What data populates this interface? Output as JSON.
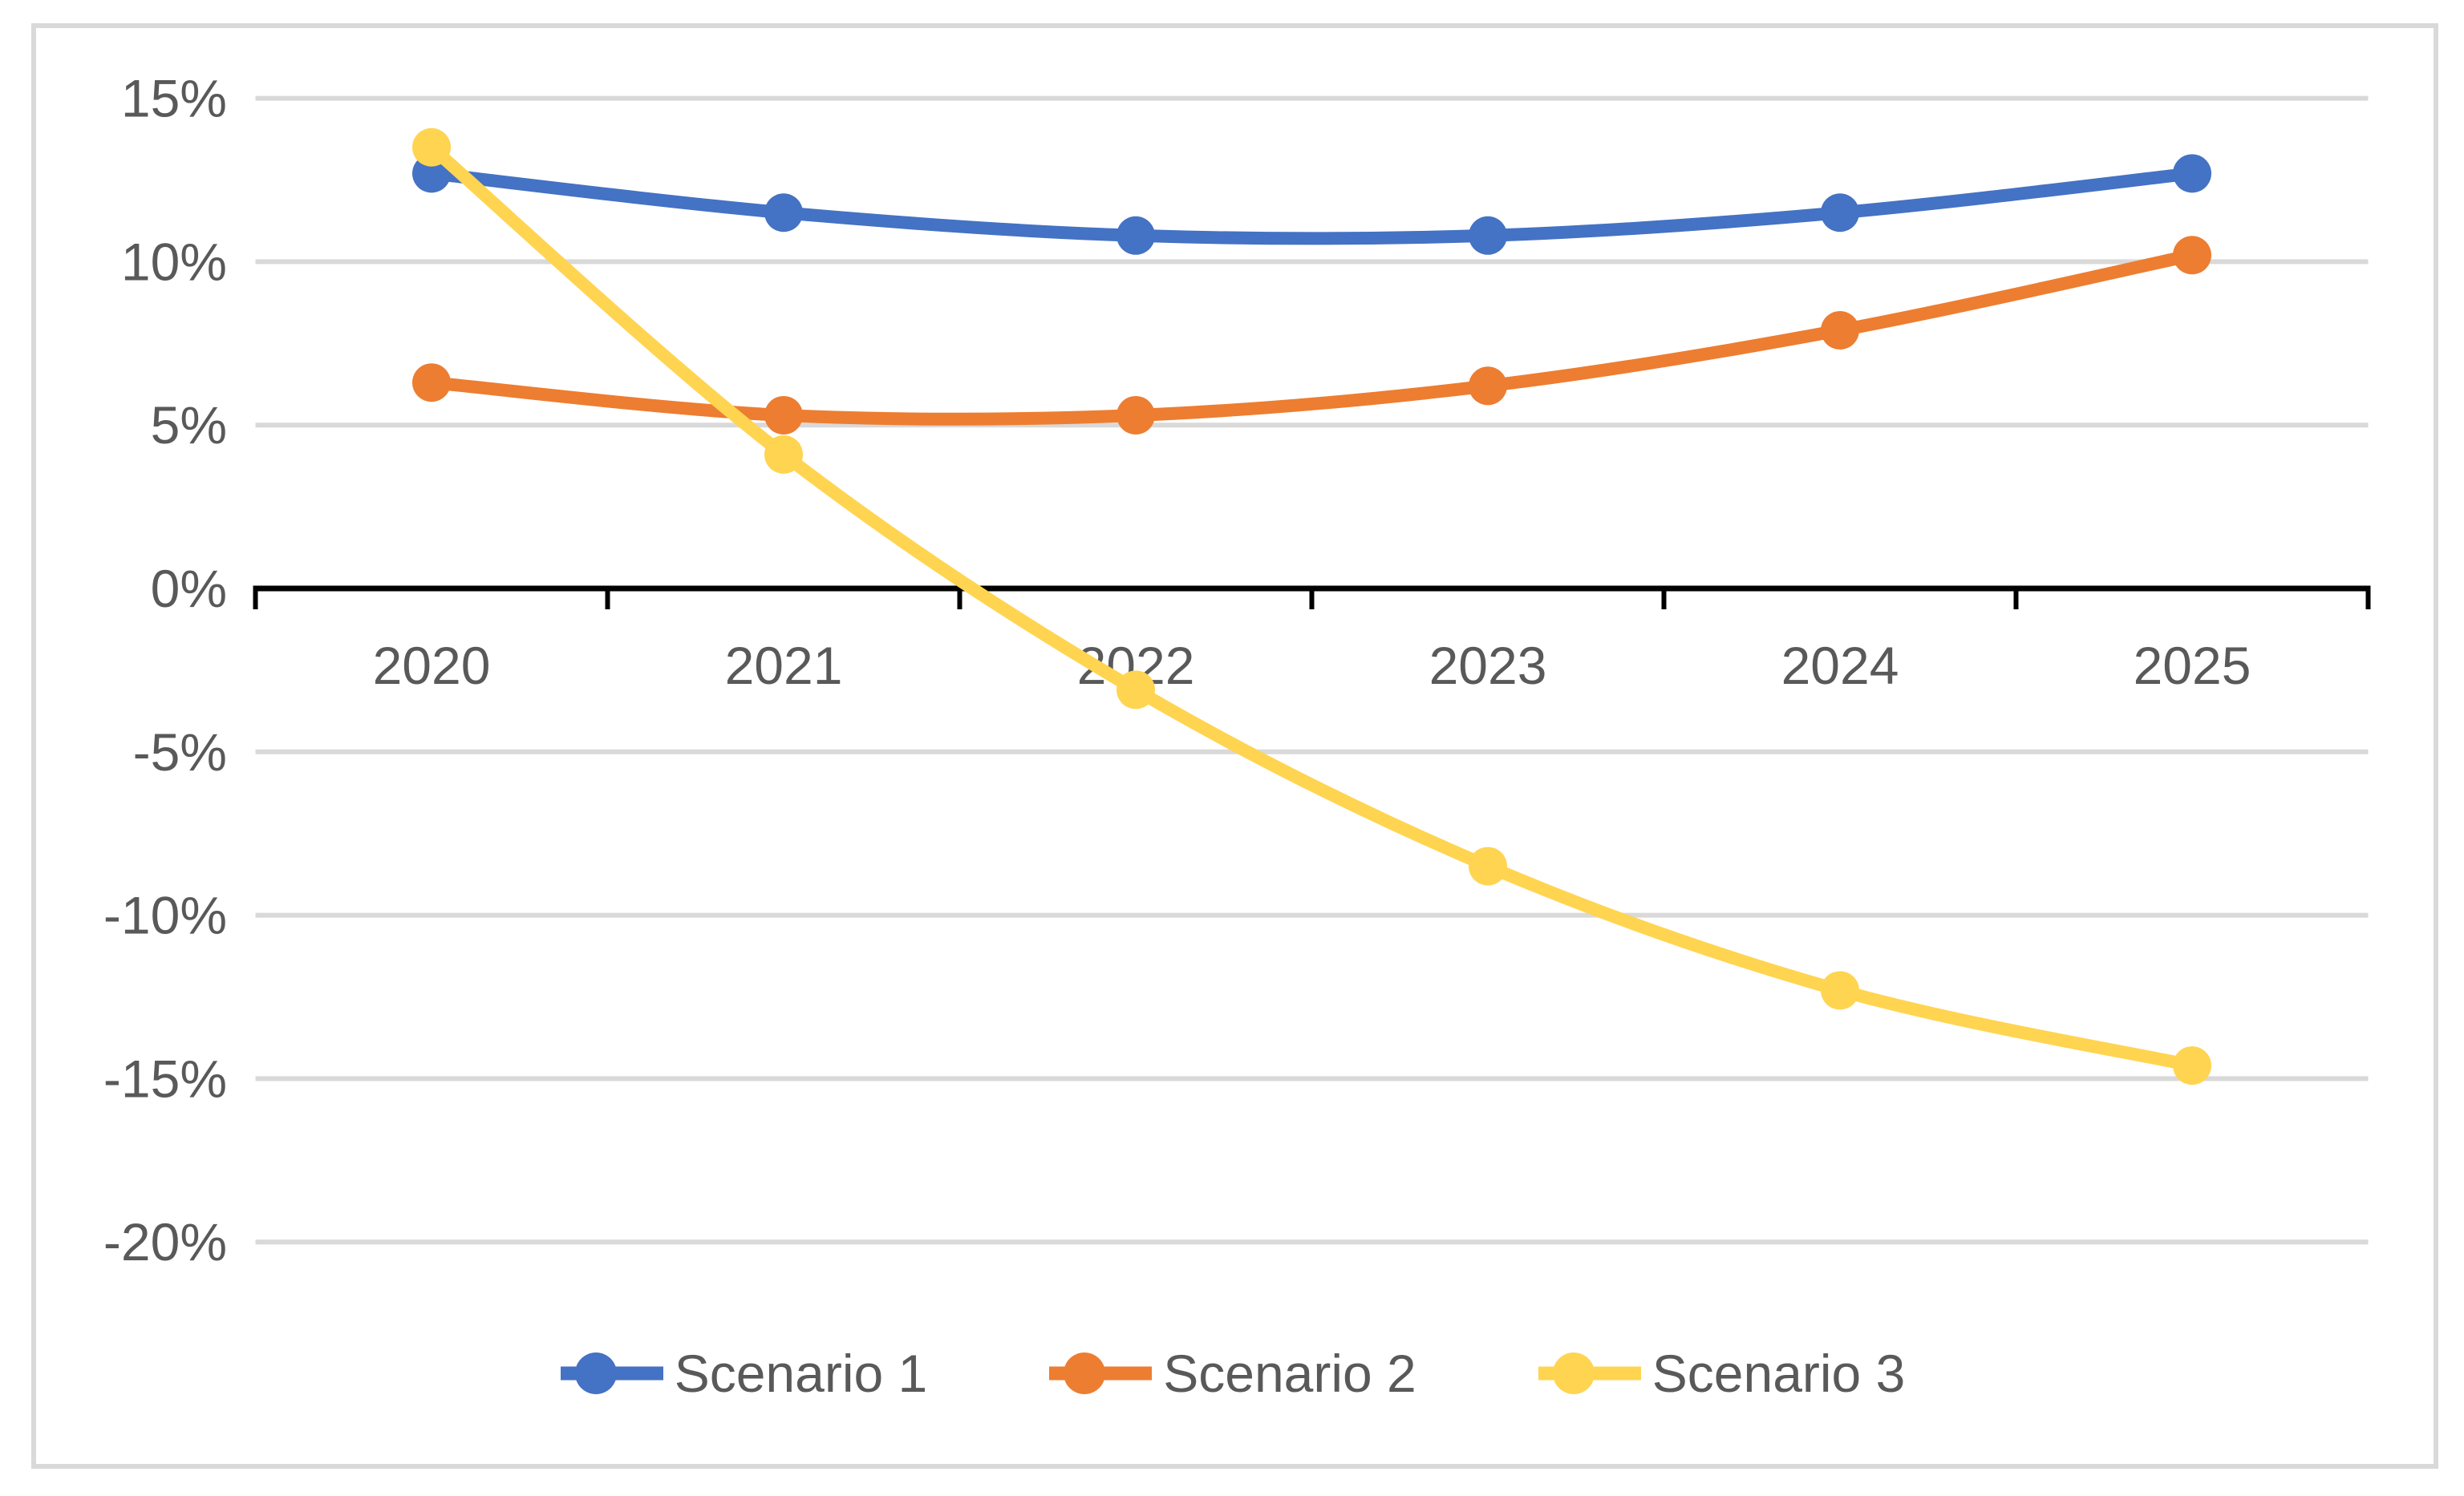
{
  "chart_data": {
    "type": "line",
    "title": "",
    "xlabel": "",
    "ylabel": "",
    "categories": [
      "2020",
      "2021",
      "2022",
      "2023",
      "2024",
      "2025"
    ],
    "series": [
      {
        "name": "Scenario 1",
        "color": "#4472C4",
        "values": [
          12.7,
          11.5,
          10.8,
          10.8,
          11.5,
          12.7
        ]
      },
      {
        "name": "Scenario 2",
        "color": "#ED7D31",
        "values": [
          6.3,
          5.3,
          5.3,
          6.2,
          7.9,
          10.2
        ]
      },
      {
        "name": "Scenario 3",
        "color": "#FFD450",
        "values": [
          13.5,
          4.1,
          -3.1,
          -8.5,
          -12.3,
          -14.6
        ]
      }
    ],
    "y_axis": {
      "min": -20,
      "max": 15,
      "step": 5,
      "tick_labels": [
        "15%",
        "10%",
        "5%",
        "0%",
        "-5%",
        "-10%",
        "-15%",
        "-20%"
      ],
      "format": "percent"
    },
    "x_axis": {
      "tick_labels": [
        "2020",
        "2021",
        "2022",
        "2023",
        "2024",
        "2025"
      ],
      "ticks_between_categories": true
    },
    "legend_position": "bottom",
    "grid": true,
    "smoothed_lines": true,
    "markers": "circle",
    "colors": {
      "gridline": "#D9D9D9",
      "axis_line": "#000000",
      "tick_text": "#595959",
      "frame_border": "#D9D9D9",
      "background": "#FFFFFF"
    }
  }
}
